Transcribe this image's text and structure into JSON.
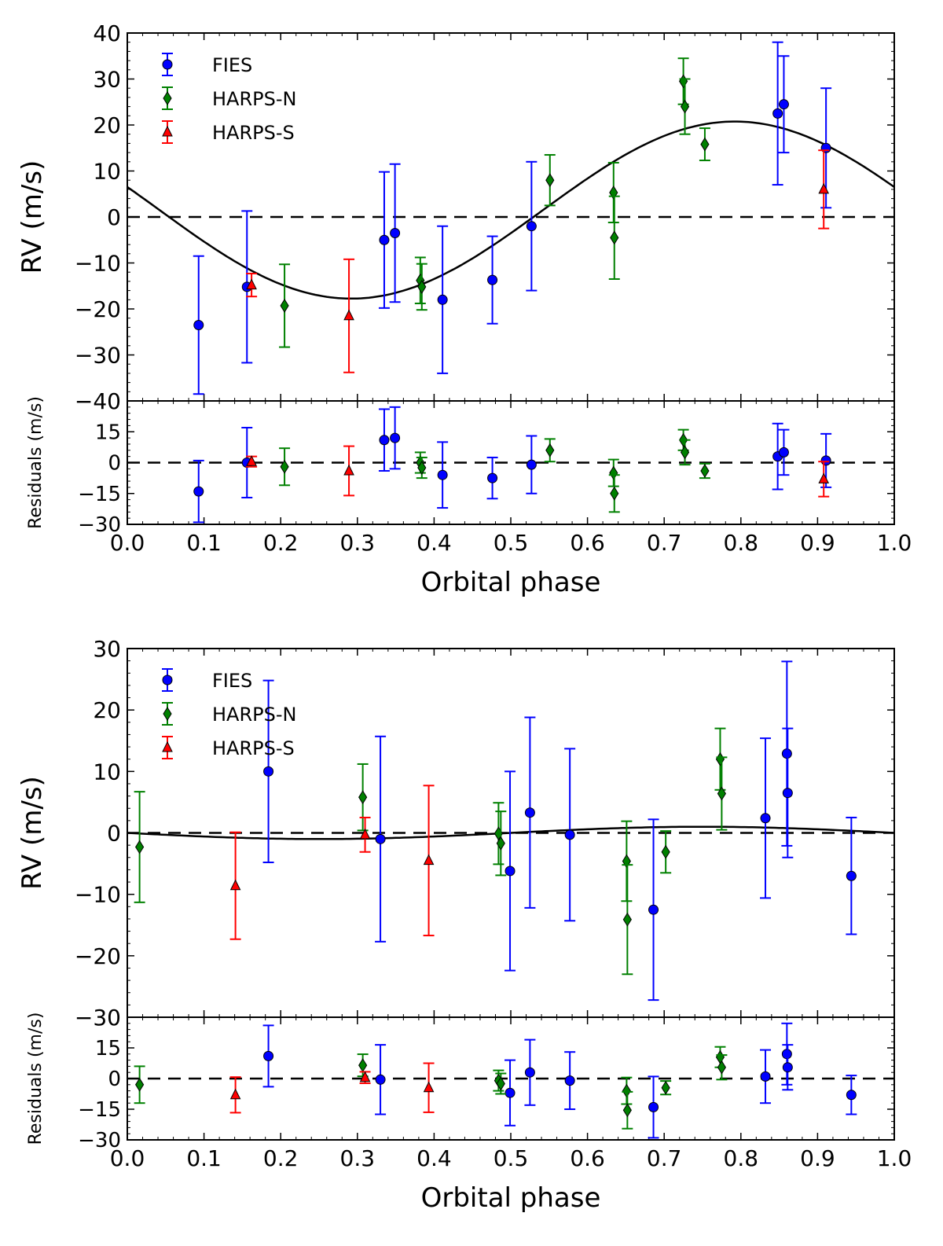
{
  "chart_data": [
    {
      "type": "scatter",
      "panel": "top",
      "xlabel": "Orbital phase",
      "ylabel": "RV (m/s)",
      "residual_label": "Residuals (m/s)",
      "xlim": [
        0.0,
        1.0
      ],
      "ylim": [
        -40,
        40
      ],
      "residual_ylim": [
        -30,
        30
      ],
      "x_ticks": [
        "0.0",
        "0.1",
        "0.2",
        "0.3",
        "0.4",
        "0.5",
        "0.6",
        "0.7",
        "0.8",
        "0.9",
        "1.0"
      ],
      "y_ticks": [
        "40",
        "30",
        "20",
        "10",
        "0",
        "−10",
        "−20",
        "−30",
        "−40"
      ],
      "residual_ticks": [
        "15",
        "0",
        "−15",
        "−30"
      ],
      "model": {
        "type": "sine",
        "offset": 1.5,
        "amplitude": 19.25,
        "phase_of_max": 0.792
      },
      "legend": {
        "placement": "top-left",
        "entries": [
          "FIES",
          "HARPS-N",
          "HARPS-S"
        ]
      },
      "series": [
        {
          "name": "FIES",
          "color": "#0000ff",
          "marker": "circle",
          "points": [
            {
              "x": 0.093,
              "y": -23.5,
              "err": 15,
              "r": -14,
              "re": 15
            },
            {
              "x": 0.156,
              "y": -15.2,
              "err": 16.5,
              "r": 0,
              "re": 17
            },
            {
              "x": 0.335,
              "y": -5.0,
              "err": 14.8,
              "r": 11,
              "re": 15
            },
            {
              "x": 0.349,
              "y": -3.5,
              "err": 15,
              "r": 12,
              "re": 15
            },
            {
              "x": 0.411,
              "y": -18.0,
              "err": 16,
              "r": -6,
              "re": 16
            },
            {
              "x": 0.476,
              "y": -13.7,
              "err": 9.5,
              "r": -7.5,
              "re": 10
            },
            {
              "x": 0.527,
              "y": -2.0,
              "err": 14,
              "r": -1,
              "re": 14
            },
            {
              "x": 0.848,
              "y": 22.5,
              "err": 15.5,
              "r": 3,
              "re": 16
            },
            {
              "x": 0.856,
              "y": 24.5,
              "err": 10.5,
              "r": 5,
              "re": 11
            },
            {
              "x": 0.911,
              "y": 15.0,
              "err": 13,
              "r": 1,
              "re": 13
            }
          ]
        },
        {
          "name": "HARPS-N",
          "color": "#008000",
          "marker": "diamond",
          "points": [
            {
              "x": 0.205,
              "y": -19.3,
              "err": 9,
              "r": -2,
              "re": 9
            },
            {
              "x": 0.382,
              "y": -13.8,
              "err": 5,
              "r": 0,
              "re": 5
            },
            {
              "x": 0.384,
              "y": -15.2,
              "err": 5,
              "r": -2.5,
              "re": 5
            },
            {
              "x": 0.551,
              "y": 8.0,
              "err": 5.5,
              "r": 6,
              "re": 5.5
            },
            {
              "x": 0.634,
              "y": 5.3,
              "err": 6.5,
              "r": -5,
              "re": 6.5
            },
            {
              "x": 0.635,
              "y": -4.5,
              "err": 9,
              "r": -15,
              "re": 9
            },
            {
              "x": 0.725,
              "y": 29.5,
              "err": 5,
              "r": 11,
              "re": 5
            },
            {
              "x": 0.727,
              "y": 24.0,
              "err": 6,
              "r": 5,
              "re": 6
            },
            {
              "x": 0.753,
              "y": 15.8,
              "err": 3.5,
              "r": -4,
              "re": 3.5
            }
          ]
        },
        {
          "name": "HARPS-S",
          "color": "#ff0000",
          "marker": "triangle",
          "points": [
            {
              "x": 0.162,
              "y": -14.8,
              "err": 2.5,
              "r": 0.5,
              "re": 2.5
            },
            {
              "x": 0.289,
              "y": -21.5,
              "err": 12.3,
              "r": -4,
              "re": 12
            },
            {
              "x": 0.908,
              "y": 6.0,
              "err": 8.5,
              "r": -8,
              "re": 8.5
            }
          ]
        }
      ]
    },
    {
      "type": "scatter",
      "panel": "bottom",
      "xlabel": "Orbital phase",
      "ylabel": "RV (m/s)",
      "residual_label": "Residuals (m/s)",
      "xlim": [
        0.0,
        1.0
      ],
      "ylim": [
        -30,
        30
      ],
      "residual_ylim": [
        -30,
        30
      ],
      "x_ticks": [
        "0.0",
        "0.1",
        "0.2",
        "0.3",
        "0.4",
        "0.5",
        "0.6",
        "0.7",
        "0.8",
        "0.9",
        "1.0"
      ],
      "y_ticks": [
        "30",
        "20",
        "10",
        "0",
        "−10",
        "−20",
        "−30"
      ],
      "residual_ticks": [
        "15",
        "0",
        "−15",
        "−30"
      ],
      "model": {
        "type": "sine",
        "offset": 0,
        "amplitude": 1.0,
        "phase_of_max": 0.75
      },
      "legend": {
        "placement": "top-left",
        "entries": [
          "FIES",
          "HARPS-N",
          "HARPS-S"
        ]
      },
      "series": [
        {
          "name": "FIES",
          "color": "#0000ff",
          "marker": "circle",
          "points": [
            {
              "x": 0.184,
              "y": 10.0,
              "err": 14.8,
              "r": 11,
              "re": 15
            },
            {
              "x": 0.33,
              "y": -1.0,
              "err": 16.7,
              "r": -0.5,
              "re": 17
            },
            {
              "x": 0.499,
              "y": -6.2,
              "err": 16.2,
              "r": -7,
              "re": 16
            },
            {
              "x": 0.525,
              "y": 3.3,
              "err": 15.5,
              "r": 3,
              "re": 16
            },
            {
              "x": 0.577,
              "y": -0.3,
              "err": 14,
              "r": -1,
              "re": 14
            },
            {
              "x": 0.686,
              "y": -12.5,
              "err": 14.7,
              "r": -14,
              "re": 15
            },
            {
              "x": 0.832,
              "y": 2.4,
              "err": 13,
              "r": 1,
              "re": 13
            },
            {
              "x": 0.86,
              "y": 12.9,
              "err": 15,
              "r": 12,
              "re": 15
            },
            {
              "x": 0.861,
              "y": 6.5,
              "err": 10.5,
              "r": 5.5,
              "re": 11
            },
            {
              "x": 0.944,
              "y": -7.0,
              "err": 9.5,
              "r": -8,
              "re": 9.5
            }
          ]
        },
        {
          "name": "HARPS-N",
          "color": "#008000",
          "marker": "diamond",
          "points": [
            {
              "x": 0.016,
              "y": -2.3,
              "err": 9,
              "r": -3,
              "re": 9
            },
            {
              "x": 0.307,
              "y": 5.8,
              "err": 5.4,
              "r": 6.5,
              "re": 5.4
            },
            {
              "x": 0.484,
              "y": -0.1,
              "err": 5,
              "r": -1,
              "re": 5
            },
            {
              "x": 0.487,
              "y": -1.7,
              "err": 5.2,
              "r": -2.5,
              "re": 5
            },
            {
              "x": 0.651,
              "y": -4.6,
              "err": 6.5,
              "r": -6,
              "re": 6.5
            },
            {
              "x": 0.652,
              "y": -14.1,
              "err": 8.9,
              "r": -15.5,
              "re": 9
            },
            {
              "x": 0.702,
              "y": -3.1,
              "err": 3.4,
              "r": -4.5,
              "re": 3.3
            },
            {
              "x": 0.773,
              "y": 12.0,
              "err": 5,
              "r": 10.5,
              "re": 5
            },
            {
              "x": 0.775,
              "y": 6.4,
              "err": 5.9,
              "r": 5.5,
              "re": 6
            }
          ]
        },
        {
          "name": "HARPS-S",
          "color": "#ff0000",
          "marker": "triangle",
          "points": [
            {
              "x": 0.141,
              "y": -8.6,
              "err": 8.7,
              "r": -8,
              "re": 8.7
            },
            {
              "x": 0.31,
              "y": -0.3,
              "err": 2.8,
              "r": 0.5,
              "re": 2.8
            },
            {
              "x": 0.393,
              "y": -4.5,
              "err": 12.2,
              "r": -4.5,
              "re": 12
            }
          ]
        }
      ]
    }
  ]
}
